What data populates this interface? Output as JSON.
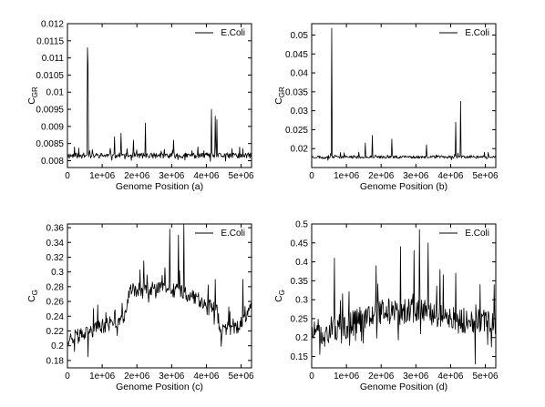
{
  "chart_data": [
    {
      "type": "line",
      "panel": "a",
      "xlabel": "Genome Position (a)",
      "ylabel_main": "C",
      "ylabel_sub": "GR",
      "xlim": [
        0,
        5300000
      ],
      "ylim": [
        0.0078,
        0.012
      ],
      "xticks": [
        0,
        1000000,
        2000000,
        3000000,
        4000000,
        5000000
      ],
      "xtick_labels": [
        "0",
        "1e+06",
        "2e+06",
        "3e+06",
        "4e+06",
        "5e+06"
      ],
      "yticks": [
        0.008,
        0.0085,
        0.009,
        0.0095,
        0.01,
        0.0105,
        0.011,
        0.0115,
        0.012
      ],
      "ytick_labels": [
        "0.008",
        "0.0085",
        "0.009",
        "0.0095",
        "0.01",
        "0.0105",
        "0.011",
        "0.0115",
        "0.012"
      ],
      "legend": "top-right",
      "series": [
        {
          "name": "E.Coli",
          "baseline": 0.00815,
          "noise": 8e-05,
          "seed": 11,
          "peaks": [
            [
              200000,
              0.0084
            ],
            [
              580000,
              0.0113
            ],
            [
              600000,
              0.0108
            ],
            [
              1350000,
              0.0087
            ],
            [
              1550000,
              0.0088
            ],
            [
              1900000,
              0.0086
            ],
            [
              2250000,
              0.0091
            ],
            [
              3050000,
              0.0086
            ],
            [
              4150000,
              0.0095
            ],
            [
              4250000,
              0.0093
            ],
            [
              4300000,
              0.0092
            ],
            [
              4950000,
              0.0084
            ]
          ]
        }
      ]
    },
    {
      "type": "line",
      "panel": "b",
      "xlabel": "Genome Position (b)",
      "ylabel_main": "C",
      "ylabel_sub": "GR",
      "xlim": [
        0,
        5300000
      ],
      "ylim": [
        0.015,
        0.053
      ],
      "xticks": [
        0,
        1000000,
        2000000,
        3000000,
        4000000,
        5000000
      ],
      "xtick_labels": [
        "0",
        "1e+06",
        "2e+06",
        "3e+06",
        "4e+06",
        "5e+06"
      ],
      "yticks": [
        0.02,
        0.025,
        0.03,
        0.035,
        0.04,
        0.045,
        0.05
      ],
      "ytick_labels": [
        "0.02",
        "0.025",
        "0.03",
        "0.035",
        "0.04",
        "0.045",
        "0.05"
      ],
      "legend": "top-right",
      "series": [
        {
          "name": "E.Coli",
          "baseline": 0.0178,
          "noise": 0.0004,
          "seed": 23,
          "peaks": [
            [
              580000,
              0.0518
            ],
            [
              1550000,
              0.0215
            ],
            [
              1750000,
              0.0235
            ],
            [
              2300000,
              0.0225
            ],
            [
              3300000,
              0.021
            ],
            [
              4150000,
              0.027
            ],
            [
              4280000,
              0.0325
            ]
          ]
        }
      ]
    },
    {
      "type": "line",
      "panel": "c",
      "xlabel": "Genome Position (c)",
      "ylabel_main": "C",
      "ylabel_sub": "G",
      "xlim": [
        0,
        5300000
      ],
      "ylim": [
        0.17,
        0.365
      ],
      "xticks": [
        0,
        1000000,
        2000000,
        3000000,
        4000000,
        5000000
      ],
      "xtick_labels": [
        "0",
        "1e+06",
        "2e+06",
        "3e+06",
        "4e+06",
        "5e+06"
      ],
      "yticks": [
        0.18,
        0.2,
        0.22,
        0.24,
        0.26,
        0.28,
        0.3,
        0.32,
        0.34,
        0.36
      ],
      "ytick_labels": [
        "0.18",
        "0.2",
        "0.22",
        "0.24",
        "0.26",
        "0.28",
        "0.3",
        "0.32",
        "0.34",
        "0.36"
      ],
      "legend": "top-right",
      "series": [
        {
          "name": "E.Coli",
          "segments": [
            [
              0,
              0.21
            ],
            [
              500000,
              0.215
            ],
            [
              900000,
              0.225
            ],
            [
              1600000,
              0.235
            ],
            [
              1800000,
              0.275
            ],
            [
              2300000,
              0.275
            ],
            [
              2800000,
              0.28
            ],
            [
              3500000,
              0.27
            ],
            [
              4300000,
              0.25
            ],
            [
              4400000,
              0.22
            ],
            [
              4900000,
              0.225
            ],
            [
              5300000,
              0.25
            ]
          ],
          "noise": 0.01,
          "seed": 37,
          "peaks": [
            [
              600000,
              0.185
            ],
            [
              1100000,
              0.245
            ],
            [
              2200000,
              0.315
            ],
            [
              2950000,
              0.358
            ],
            [
              3200000,
              0.35
            ],
            [
              3350000,
              0.365
            ],
            [
              4250000,
              0.29
            ],
            [
              5050000,
              0.29
            ]
          ]
        }
      ]
    },
    {
      "type": "line",
      "panel": "d",
      "xlabel": "Genome Position (d)",
      "ylabel_main": "C",
      "ylabel_sub": "G",
      "xlim": [
        0,
        5300000
      ],
      "ylim": [
        0.12,
        0.5
      ],
      "xticks": [
        0,
        1000000,
        2000000,
        3000000,
        4000000,
        5000000
      ],
      "xtick_labels": [
        "0",
        "1e+06",
        "2e+06",
        "3e+06",
        "4e+06",
        "5e+06"
      ],
      "yticks": [
        0.15,
        0.2,
        0.25,
        0.3,
        0.35,
        0.4,
        0.45,
        0.5
      ],
      "ytick_labels": [
        "0.15",
        "0.2",
        "0.25",
        "0.3",
        "0.35",
        "0.4",
        "0.45",
        "0.5"
      ],
      "legend": "top-right",
      "series": [
        {
          "name": "E.Coli",
          "segments": [
            [
              0,
              0.21
            ],
            [
              1000000,
              0.23
            ],
            [
              1800000,
              0.27
            ],
            [
              3500000,
              0.265
            ],
            [
              4300000,
              0.245
            ],
            [
              5300000,
              0.235
            ]
          ],
          "noise": 0.035,
          "seed": 51,
          "peaks": [
            [
              650000,
              0.41
            ],
            [
              1850000,
              0.39
            ],
            [
              2550000,
              0.44
            ],
            [
              2950000,
              0.43
            ],
            [
              3100000,
              0.485
            ],
            [
              3350000,
              0.45
            ],
            [
              3700000,
              0.38
            ],
            [
              4150000,
              0.37
            ],
            [
              4850000,
              0.34
            ],
            [
              4700000,
              0.13
            ]
          ]
        }
      ]
    }
  ]
}
